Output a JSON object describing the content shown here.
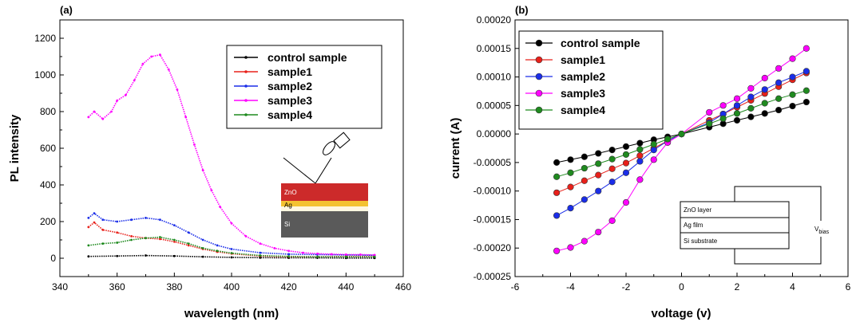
{
  "chart_data": [
    {
      "type": "scatter",
      "panel_label": "(a)",
      "xlabel": "wavelength (nm)",
      "ylabel": "PL intensity",
      "xlim": [
        340,
        460
      ],
      "ylim": [
        -100,
        1300
      ],
      "xticks": [
        340,
        360,
        380,
        400,
        420,
        440,
        460
      ],
      "yticks": [
        0,
        200,
        400,
        600,
        800,
        1000,
        1200
      ],
      "legend_position": "top-right",
      "series": [
        {
          "name": "control sample",
          "color": "#000000",
          "x": [
            350,
            360,
            370,
            380,
            390,
            400,
            410,
            420,
            430,
            440,
            450
          ],
          "y": [
            10,
            12,
            15,
            12,
            8,
            5,
            3,
            2,
            2,
            1,
            1
          ]
        },
        {
          "name": "sample1",
          "color": "#e8201a",
          "x": [
            350,
            352,
            355,
            360,
            365,
            370,
            375,
            380,
            385,
            390,
            395,
            400,
            410,
            420,
            430,
            440,
            450
          ],
          "y": [
            170,
            195,
            155,
            140,
            120,
            110,
            105,
            90,
            70,
            50,
            35,
            25,
            12,
            8,
            8,
            10,
            10
          ]
        },
        {
          "name": "sample2",
          "color": "#1a2de8",
          "x": [
            350,
            352,
            355,
            360,
            365,
            370,
            375,
            380,
            385,
            390,
            395,
            400,
            410,
            420,
            430,
            440,
            450
          ],
          "y": [
            220,
            245,
            210,
            200,
            210,
            220,
            210,
            180,
            140,
            100,
            70,
            50,
            30,
            22,
            20,
            18,
            16
          ]
        },
        {
          "name": "sample3",
          "color": "#ff00ff",
          "x": [
            350,
            352,
            355,
            358,
            360,
            363,
            366,
            369,
            372,
            375,
            378,
            381,
            384,
            387,
            390,
            393,
            396,
            400,
            405,
            410,
            415,
            420,
            425,
            430,
            435,
            440,
            445,
            450
          ],
          "y": [
            770,
            800,
            760,
            800,
            860,
            890,
            970,
            1060,
            1100,
            1110,
            1030,
            920,
            770,
            620,
            480,
            370,
            280,
            190,
            120,
            80,
            55,
            40,
            30,
            25,
            22,
            20,
            20,
            18
          ]
        },
        {
          "name": "sample4",
          "color": "#1f8a1f",
          "x": [
            350,
            355,
            360,
            365,
            370,
            375,
            380,
            385,
            390,
            395,
            400,
            410,
            420,
            430,
            440,
            450
          ],
          "y": [
            70,
            80,
            85,
            100,
            110,
            115,
            100,
            80,
            55,
            40,
            28,
            15,
            10,
            8,
            8,
            8
          ]
        }
      ],
      "inset_labels": [
        "ZnO",
        "Ag",
        "Si"
      ]
    },
    {
      "type": "line",
      "panel_label": "(b)",
      "xlabel": "voltage (v)",
      "ylabel": "current (A)",
      "xlim": [
        -6,
        6
      ],
      "ylim": [
        -0.00025,
        0.0002
      ],
      "xticks": [
        -6,
        -4,
        -2,
        0,
        2,
        4,
        6
      ],
      "yticks": [
        -0.00025,
        -0.0002,
        -0.00015,
        -0.0001,
        -5e-05,
        0.0,
        5e-05,
        0.0001,
        0.00015,
        0.0002
      ],
      "ytick_labels": [
        "-0.00025",
        "-0.00020",
        "-0.00015",
        "-0.00010",
        "-0.00005",
        "0.00000",
        "0.00005",
        "0.00010",
        "0.00015",
        "0.00020"
      ],
      "legend_position": "top-left",
      "x": [
        -4.5,
        -4.0,
        -3.5,
        -3.0,
        -2.5,
        -2.0,
        -1.5,
        -1.0,
        -0.5,
        0.0,
        1.0,
        1.5,
        2.0,
        2.5,
        3.0,
        3.5,
        4.0,
        4.5
      ],
      "series": [
        {
          "name": "control sample",
          "color": "#000000",
          "values": [
            -5e-05,
            -4.5e-05,
            -4e-05,
            -3.4e-05,
            -2.8e-05,
            -2.2e-05,
            -1.6e-05,
            -1e-05,
            -5e-06,
            0.0,
            1.2e-05,
            1.8e-05,
            2.4e-05,
            3e-05,
            3.6e-05,
            4.2e-05,
            4.9e-05,
            5.6e-05
          ]
        },
        {
          "name": "sample1",
          "color": "#e8201a",
          "values": [
            -0.000103,
            -9.3e-05,
            -8.2e-05,
            -7.2e-05,
            -6.1e-05,
            -5.1e-05,
            -3.8e-05,
            -2.5e-05,
            -1.2e-05,
            0.0,
            2.4e-05,
            3.5e-05,
            4.7e-05,
            5.9e-05,
            7.1e-05,
            8.3e-05,
            9.5e-05,
            0.000107
          ]
        },
        {
          "name": "sample2",
          "color": "#1a2de8",
          "values": [
            -0.000143,
            -0.00013,
            -0.000115,
            -0.0001,
            -8.4e-05,
            -6.8e-05,
            -4.8e-05,
            -2.8e-05,
            -1.2e-05,
            0.0,
            2e-05,
            3.5e-05,
            5e-05,
            6.5e-05,
            7.8e-05,
            9e-05,
            0.0001,
            0.00011
          ]
        },
        {
          "name": "sample3",
          "color": "#ff00ff",
          "values": [
            -0.000205,
            -0.000199,
            -0.000188,
            -0.000172,
            -0.000152,
            -0.00012,
            -8e-05,
            -4.5e-05,
            -1.5e-05,
            0.0,
            3.8e-05,
            5e-05,
            6.2e-05,
            8e-05,
            9.8e-05,
            0.000115,
            0.000132,
            0.00015
          ]
        },
        {
          "name": "sample4",
          "color": "#1f8a1f",
          "values": [
            -7.5e-05,
            -6.8e-05,
            -6e-05,
            -5.2e-05,
            -4.4e-05,
            -3.6e-05,
            -2.7e-05,
            -1.8e-05,
            -9e-06,
            0.0,
            1.8e-05,
            2.7e-05,
            3.6e-05,
            4.5e-05,
            5.4e-05,
            6.2e-05,
            6.9e-05,
            7.6e-05
          ]
        }
      ],
      "inset_labels": [
        "ZnO layer",
        "Ag film",
        "Si substrate"
      ],
      "inset_vbias": {
        "main": "V",
        "sub": "bias"
      }
    }
  ]
}
